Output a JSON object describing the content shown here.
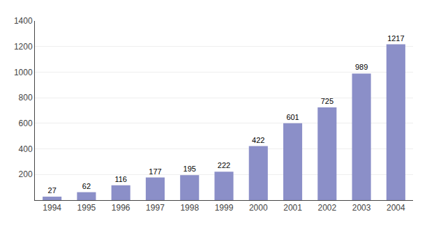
{
  "chart_data": {
    "type": "bar",
    "categories": [
      "1994",
      "1995",
      "1996",
      "1997",
      "1998",
      "1999",
      "2000",
      "2001",
      "2002",
      "2003",
      "2004"
    ],
    "values": [
      27,
      62,
      116,
      177,
      195,
      222,
      422,
      601,
      725,
      989,
      1217
    ],
    "color": "#8b8fc8",
    "ylim": [
      0,
      1400
    ],
    "yticks": [
      200,
      400,
      600,
      800,
      1000,
      1200,
      1400
    ],
    "grid": true,
    "data_labels": true
  }
}
